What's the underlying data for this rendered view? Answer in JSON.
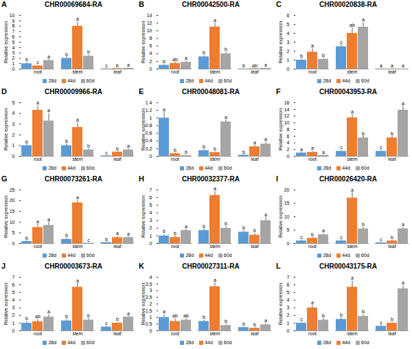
{
  "chart_data": [
    {
      "type": "bar",
      "panel": "A",
      "title": "CHR00069684-RA",
      "y_label": "Relative expression",
      "categories": [
        "root",
        "stem",
        "leaf"
      ],
      "ylim": [
        0,
        10
      ],
      "yticks": [
        0,
        1,
        2,
        3,
        4,
        5,
        6,
        7,
        8,
        9,
        10
      ],
      "legend": "bottom",
      "series": [
        {
          "name": "28d",
          "color": "#5b9bd5",
          "values": [
            1.0,
            2.0,
            0.05
          ],
          "errors": [
            0.2,
            0.2,
            0.02
          ],
          "annotations": [
            "b",
            "b",
            "c"
          ]
        },
        {
          "name": "44d",
          "color": "#ed7d31",
          "values": [
            0.6,
            8.0,
            0.1
          ],
          "errors": [
            0.1,
            0.8,
            0.02
          ],
          "annotations": [
            "c",
            "a",
            "b"
          ]
        },
        {
          "name": "60d",
          "color": "#a5a5a5",
          "values": [
            1.6,
            2.4,
            0.15
          ],
          "errors": [
            0.2,
            0.2,
            0.03
          ],
          "annotations": [
            "a",
            "b",
            "a"
          ]
        }
      ]
    },
    {
      "type": "bar",
      "panel": "B",
      "title": "CHR00042500-RA",
      "y_label": "Relative expression",
      "categories": [
        "root",
        "stem",
        "leaf"
      ],
      "ylim": [
        0,
        14
      ],
      "yticks": [
        0,
        2,
        4,
        6,
        8,
        10,
        12,
        14
      ],
      "legend": "bottom",
      "series": [
        {
          "name": "28d",
          "color": "#5b9bd5",
          "values": [
            1.0,
            3.2,
            0.05
          ],
          "errors": [
            0.2,
            0.3,
            0.02
          ],
          "annotations": [
            "b",
            "b",
            "b"
          ]
        },
        {
          "name": "44d",
          "color": "#ed7d31",
          "values": [
            1.5,
            11.0,
            0.1
          ],
          "errors": [
            0.3,
            1.0,
            0.03
          ],
          "annotations": [
            "ab",
            "a",
            "ab"
          ]
        },
        {
          "name": "60d",
          "color": "#a5a5a5",
          "values": [
            1.8,
            4.0,
            0.2
          ],
          "errors": [
            0.3,
            0.4,
            0.05
          ],
          "annotations": [
            "a",
            "b",
            "a"
          ]
        }
      ]
    },
    {
      "type": "bar",
      "panel": "C",
      "title": "CHR00020838-RA",
      "y_label": "Relative expression",
      "categories": [
        "root",
        "stem",
        "leaf"
      ],
      "ylim": [
        0,
        6
      ],
      "yticks": [
        0,
        1,
        2,
        3,
        4,
        5,
        6
      ],
      "legend": "bottom",
      "series": [
        {
          "name": "28d",
          "color": "#5b9bd5",
          "values": [
            1.0,
            2.5,
            0.02
          ],
          "errors": [
            0.1,
            0.2,
            0.01
          ],
          "annotations": [
            "b",
            "c",
            "a"
          ]
        },
        {
          "name": "44d",
          "color": "#ed7d31",
          "values": [
            1.9,
            4.0,
            0.02
          ],
          "errors": [
            0.4,
            0.6,
            0.01
          ],
          "annotations": [
            "a",
            "ab",
            "a"
          ]
        },
        {
          "name": "60d",
          "color": "#a5a5a5",
          "values": [
            1.1,
            4.7,
            0.02
          ],
          "errors": [
            0.1,
            0.5,
            0.01
          ],
          "annotations": [
            "b",
            "a",
            "a"
          ]
        }
      ]
    },
    {
      "type": "bar",
      "panel": "D",
      "title": "CHR00009966-RA",
      "y_label": "Relative expression",
      "categories": [
        "root",
        "stem",
        "leaf"
      ],
      "ylim": [
        0,
        5
      ],
      "yticks": [
        0,
        1,
        2,
        3,
        4,
        5
      ],
      "legend": "bottom",
      "series": [
        {
          "name": "28d",
          "color": "#5b9bd5",
          "values": [
            1.0,
            1.0,
            0.05
          ],
          "errors": [
            0.1,
            0.15,
            0.02
          ],
          "annotations": [
            "b",
            "b",
            "c"
          ]
        },
        {
          "name": "44d",
          "color": "#ed7d31",
          "values": [
            4.3,
            2.7,
            0.4
          ],
          "errors": [
            0.4,
            0.4,
            0.05
          ],
          "annotations": [
            "a",
            "a",
            "b"
          ]
        },
        {
          "name": "60d",
          "color": "#a5a5a5",
          "values": [
            3.3,
            0.6,
            0.6
          ],
          "errors": [
            0.7,
            0.1,
            0.1
          ],
          "annotations": [
            "a",
            "b",
            "a"
          ]
        }
      ]
    },
    {
      "type": "bar",
      "panel": "E",
      "title": "CHR00048081-RA",
      "y_label": "Relative expression",
      "categories": [
        "root",
        "stem",
        "leaf"
      ],
      "ylim": [
        0,
        1.4
      ],
      "yticks": [
        0,
        0.2,
        0.4,
        0.6,
        0.8,
        1,
        1.2,
        1.4
      ],
      "legend": "bottom",
      "series": [
        {
          "name": "28d",
          "color": "#5b9bd5",
          "values": [
            1.0,
            0.15,
            0.03
          ],
          "errors": [
            0.15,
            0.03,
            0.01
          ],
          "annotations": [
            "a",
            "b",
            "b"
          ]
        },
        {
          "name": "44d",
          "color": "#ed7d31",
          "values": [
            0.07,
            0.1,
            0.25
          ],
          "errors": [
            0.02,
            0.02,
            0.04
          ],
          "annotations": [
            "b",
            "b",
            "a"
          ]
        },
        {
          "name": "60d",
          "color": "#a5a5a5",
          "values": [
            0.02,
            0.9,
            0.32
          ],
          "errors": [
            0.01,
            0.05,
            0.05
          ],
          "annotations": [
            "b",
            "a",
            "a"
          ]
        }
      ]
    },
    {
      "type": "bar",
      "panel": "F",
      "title": "CHR00043953-RA",
      "y_label": "Relative expression",
      "categories": [
        "root",
        "stem",
        "leaf"
      ],
      "ylim": [
        0,
        16
      ],
      "yticks": [
        0,
        2,
        4,
        6,
        8,
        10,
        12,
        14,
        16
      ],
      "legend": "bottom",
      "series": [
        {
          "name": "28d",
          "color": "#5b9bd5",
          "values": [
            1.0,
            1.5,
            1.5
          ],
          "errors": [
            0.2,
            0.2,
            0.2
          ],
          "annotations": [
            "a",
            "c",
            "c"
          ]
        },
        {
          "name": "44d",
          "color": "#ed7d31",
          "values": [
            1.2,
            11.5,
            5.5
          ],
          "errors": [
            0.3,
            1.0,
            0.5
          ],
          "annotations": [
            "a",
            "a",
            "b"
          ]
        },
        {
          "name": "60d",
          "color": "#a5a5a5",
          "values": [
            0.3,
            5.5,
            13.8
          ],
          "errors": [
            0.1,
            0.5,
            1.2
          ],
          "annotations": [
            "a",
            "b",
            "a"
          ]
        }
      ]
    },
    {
      "type": "bar",
      "panel": "G",
      "title": "CHR00073261-RA",
      "y_label": "Relative expression",
      "categories": [
        "root",
        "stem",
        "leaf"
      ],
      "ylim": [
        0,
        25
      ],
      "yticks": [
        0,
        5,
        10,
        15,
        20,
        25
      ],
      "legend": "bottom",
      "series": [
        {
          "name": "28d",
          "color": "#5b9bd5",
          "values": [
            1.0,
            2.0,
            0.5
          ],
          "errors": [
            0.3,
            0.5,
            0.1
          ],
          "annotations": [
            "b",
            "b",
            "b"
          ]
        },
        {
          "name": "44d",
          "color": "#ed7d31",
          "values": [
            7.5,
            19.0,
            2.8
          ],
          "errors": [
            1.5,
            1.0,
            0.5
          ],
          "annotations": [
            "a",
            "a",
            "a"
          ]
        },
        {
          "name": "60d",
          "color": "#a5a5a5",
          "values": [
            8.5,
            0.2,
            2.8
          ],
          "errors": [
            1.5,
            0.05,
            0.4
          ],
          "annotations": [
            "a",
            "c",
            "a"
          ]
        }
      ]
    },
    {
      "type": "bar",
      "panel": "H",
      "title": "CHR00032377-RA",
      "y_label": "Relative expression",
      "categories": [
        "root",
        "stem",
        "leaf"
      ],
      "ylim": [
        0,
        7
      ],
      "yticks": [
        0,
        1,
        2,
        3,
        4,
        5,
        6,
        7
      ],
      "legend": "bottom",
      "series": [
        {
          "name": "28d",
          "color": "#5b9bd5",
          "values": [
            1.0,
            1.7,
            1.5
          ],
          "errors": [
            0.2,
            0.2,
            0.2
          ],
          "annotations": [
            "b",
            "b",
            "b"
          ]
        },
        {
          "name": "44d",
          "color": "#ed7d31",
          "values": [
            0.8,
            6.3,
            1.1
          ],
          "errors": [
            0.2,
            0.5,
            0.2
          ],
          "annotations": [
            "b",
            "a",
            "b"
          ]
        },
        {
          "name": "60d",
          "color": "#a5a5a5",
          "values": [
            1.7,
            2.0,
            3.0
          ],
          "errors": [
            0.2,
            0.2,
            0.4
          ],
          "annotations": [
            "a",
            "b",
            "a"
          ]
        }
      ]
    },
    {
      "type": "bar",
      "panel": "I",
      "title": "CHR00026420-RA",
      "y_label": "Relative expression",
      "categories": [
        "root",
        "stem",
        "leaf"
      ],
      "ylim": [
        0,
        20
      ],
      "yticks": [
        0,
        5,
        10,
        15,
        20
      ],
      "legend": "bottom",
      "series": [
        {
          "name": "28d",
          "color": "#5b9bd5",
          "values": [
            1.0,
            1.0,
            0.3
          ],
          "errors": [
            0.2,
            0.2,
            0.1
          ],
          "annotations": [
            "c",
            "c",
            "c"
          ]
        },
        {
          "name": "44d",
          "color": "#ed7d31",
          "values": [
            2.0,
            17.0,
            1.0
          ],
          "errors": [
            0.3,
            2.0,
            0.2
          ],
          "annotations": [
            "b",
            "a",
            "b"
          ]
        },
        {
          "name": "60d",
          "color": "#a5a5a5",
          "values": [
            3.3,
            5.5,
            5.5
          ],
          "errors": [
            0.4,
            0.6,
            0.6
          ],
          "annotations": [
            "a",
            "b",
            "a"
          ]
        }
      ]
    },
    {
      "type": "bar",
      "panel": "J",
      "title": "CHR00003673-RA",
      "y_label": "Relative expression",
      "categories": [
        "root",
        "stem",
        "leaf"
      ],
      "ylim": [
        0,
        7
      ],
      "yticks": [
        0,
        1,
        2,
        3,
        4,
        5,
        6,
        7
      ],
      "legend": "bottom",
      "series": [
        {
          "name": "28d",
          "color": "#5b9bd5",
          "values": [
            1.0,
            1.3,
            0.5
          ],
          "errors": [
            0.2,
            0.2,
            0.1
          ],
          "annotations": [
            "b",
            "b",
            "c"
          ]
        },
        {
          "name": "44d",
          "color": "#ed7d31",
          "values": [
            1.2,
            5.7,
            1.0
          ],
          "errors": [
            0.3,
            0.5,
            0.1
          ],
          "annotations": [
            "ab",
            "a",
            "b"
          ]
        },
        {
          "name": "60d",
          "color": "#a5a5a5",
          "values": [
            1.8,
            1.4,
            1.8
          ],
          "errors": [
            0.3,
            0.2,
            0.1
          ],
          "annotations": [
            "a",
            "b",
            "a"
          ]
        }
      ]
    },
    {
      "type": "bar",
      "panel": "K",
      "title": "CHR00027311-RA",
      "y_label": "Relative expression",
      "categories": [
        "root",
        "stem",
        "leaf"
      ],
      "ylim": [
        0,
        4
      ],
      "yticks": [
        0,
        0.5,
        1,
        1.5,
        2,
        2.5,
        3,
        3.5,
        4
      ],
      "legend": "bottom",
      "series": [
        {
          "name": "28d",
          "color": "#5b9bd5",
          "values": [
            1.0,
            0.7,
            0.25
          ],
          "errors": [
            0.2,
            0.1,
            0.05
          ],
          "annotations": [
            "a",
            "b",
            "b"
          ]
        },
        {
          "name": "44d",
          "color": "#ed7d31",
          "values": [
            0.7,
            3.3,
            0.2
          ],
          "errors": [
            0.2,
            0.3,
            0.05
          ],
          "annotations": [
            "ab",
            "a",
            "b"
          ]
        },
        {
          "name": "60d",
          "color": "#a5a5a5",
          "values": [
            0.8,
            0.4,
            0.45
          ],
          "errors": [
            0.1,
            0.1,
            0.1
          ],
          "annotations": [
            "ab",
            "b",
            "a"
          ]
        }
      ]
    },
    {
      "type": "bar",
      "panel": "L",
      "title": "CHR00043175-RA",
      "y_label": "Relative expression",
      "categories": [
        "root",
        "stem",
        "leaf"
      ],
      "ylim": [
        0,
        7
      ],
      "yticks": [
        0,
        1,
        2,
        3,
        4,
        5,
        6,
        7
      ],
      "legend": "bottom",
      "series": [
        {
          "name": "28d",
          "color": "#5b9bd5",
          "values": [
            1.0,
            1.5,
            0.6
          ],
          "errors": [
            0.1,
            0.2,
            0.1
          ],
          "annotations": [
            "c",
            "b",
            "c"
          ]
        },
        {
          "name": "44d",
          "color": "#ed7d31",
          "values": [
            3.0,
            5.7,
            1.0
          ],
          "errors": [
            0.3,
            0.8,
            0.1
          ],
          "annotations": [
            "a",
            "a",
            "b"
          ]
        },
        {
          "name": "60d",
          "color": "#a5a5a5",
          "values": [
            1.4,
            1.9,
            5.5
          ],
          "errors": [
            0.2,
            0.2,
            0.4
          ],
          "annotations": [
            "b",
            "b",
            "a"
          ]
        }
      ]
    }
  ]
}
